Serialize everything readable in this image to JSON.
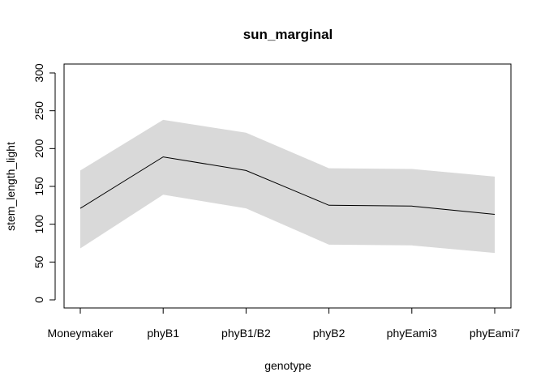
{
  "chart_data": {
    "type": "line",
    "title": "sun_marginal",
    "xlabel": "genotype",
    "ylabel": "stem_length_light",
    "categories": [
      "Moneymaker",
      "phyB1",
      "phyB1/B2",
      "phyB2",
      "phyEami3",
      "phyEami7"
    ],
    "series": [
      {
        "values": [
          121,
          189,
          171,
          125,
          124,
          113
        ],
        "lower": [
          68,
          139,
          121,
          73,
          72,
          62
        ],
        "upper": [
          171,
          238,
          221,
          174,
          173,
          163
        ]
      }
    ],
    "ylim": [
      0,
      300
    ],
    "yticks": [
      0,
      50,
      100,
      150,
      200,
      250,
      300
    ],
    "band_color": "#d9d9d9",
    "line_color": "#000000",
    "grid": false
  }
}
